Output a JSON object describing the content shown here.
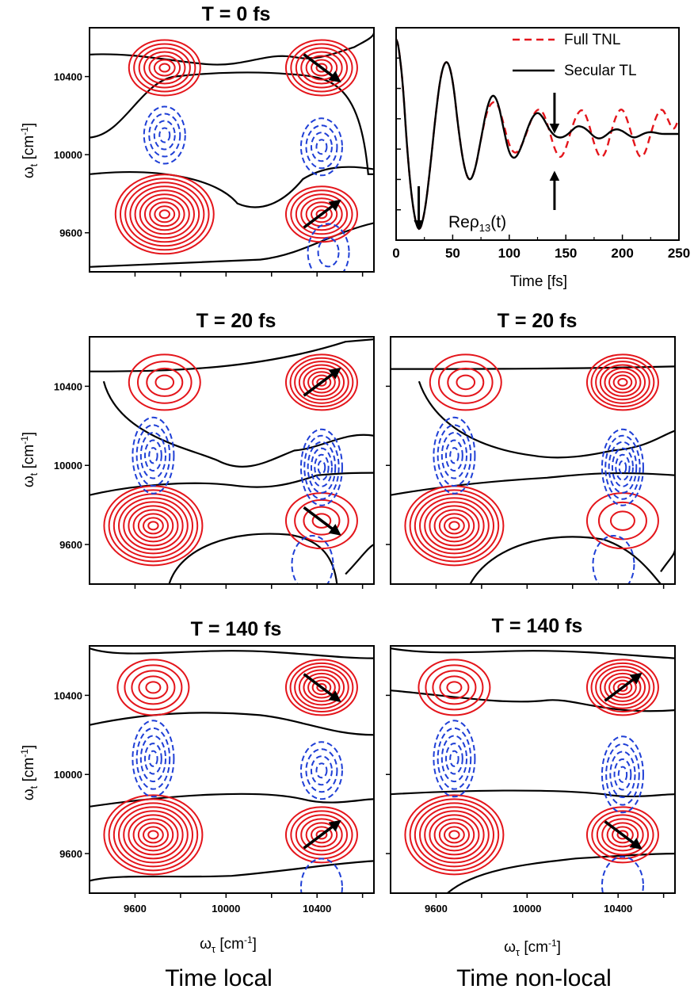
{
  "captions": {
    "left": "Time local",
    "right": "Time non-local"
  },
  "axis_units": {
    "omega_tau_label": "ω",
    "omega_tau_sub": "τ",
    "omega_t_label": "ω",
    "omega_t_sub": "t",
    "unit": "[cm",
    "unit_sup": "-1",
    "unit_close": "]"
  },
  "colors": {
    "positive_contours": "#e4151b",
    "negative_contours": "#1f3fd6",
    "zero_contour": "#000000",
    "arrow": "#000000",
    "full_tnl": "#e4151b",
    "secular_tl": "#000000"
  },
  "chart_data": [
    {
      "type": "contour",
      "panel": "top-left",
      "title": "T = 0 fs",
      "xlabel": "ωτ [cm-1]",
      "ylabel": "ωt [cm-1]",
      "xlim": [
        9400,
        10650
      ],
      "ylim": [
        9400,
        10650
      ],
      "yticks": [
        "10400",
        "10000",
        "9600"
      ],
      "xticks_labeled": false,
      "peaks": [
        {
          "x": 9730,
          "y": 10445,
          "sign": "positive",
          "rings": 7
        },
        {
          "x": 10420,
          "y": 10445,
          "sign": "positive",
          "rings": 7
        },
        {
          "x": 9730,
          "y": 9695,
          "sign": "positive",
          "rings": 10
        },
        {
          "x": 10420,
          "y": 9695,
          "sign": "positive",
          "rings": 7
        },
        {
          "x": 9730,
          "y": 10100,
          "sign": "negative",
          "rings": 4
        },
        {
          "x": 10420,
          "y": 10040,
          "sign": "negative",
          "rings": 4
        },
        {
          "x": 10450,
          "y": 9500,
          "sign": "negative",
          "rings": 2
        }
      ],
      "arrows": [
        {
          "at": "upper-right",
          "direction": "down-right"
        },
        {
          "at": "lower-right",
          "direction": "up-right"
        }
      ]
    },
    {
      "type": "line",
      "panel": "top-right",
      "xlabel": "Time [fs]",
      "xlim": [
        0,
        250
      ],
      "xticks": [
        "0",
        "50",
        "100",
        "150",
        "200",
        "250"
      ],
      "annotation": "Reρ13(t)",
      "legend": {
        "position": "top-right",
        "entries": [
          "Full TNL",
          "Secular TL"
        ]
      },
      "series": [
        {
          "name": "Full TNL",
          "style": "dashed",
          "color": "#e4151b",
          "x": [
            0,
            2,
            6,
            10,
            15,
            20,
            25,
            30,
            35,
            40,
            45,
            50,
            55,
            60,
            65,
            70,
            75,
            80,
            85,
            90,
            95,
            100,
            105,
            110,
            115,
            120,
            125,
            130,
            135,
            140,
            145,
            150,
            155,
            160,
            165,
            170,
            175,
            180,
            185,
            190,
            195,
            200,
            205,
            210,
            215,
            220,
            225,
            230,
            235,
            240,
            245,
            250
          ],
          "y": [
            0.93,
            0.88,
            0.5,
            -0.2,
            -0.75,
            -0.98,
            -0.8,
            -0.35,
            0.2,
            0.62,
            0.74,
            0.55,
            0.05,
            -0.33,
            -0.48,
            -0.35,
            -0.05,
            0.22,
            0.32,
            0.3,
            0.1,
            -0.12,
            -0.2,
            -0.14,
            0.0,
            0.16,
            0.25,
            0.22,
            0.05,
            -0.15,
            -0.25,
            -0.15,
            0.05,
            0.2,
            0.25,
            0.12,
            -0.1,
            -0.24,
            -0.2,
            0.02,
            0.2,
            0.26,
            0.12,
            -0.08,
            -0.24,
            -0.2,
            0.0,
            0.18,
            0.26,
            0.15,
            0.02,
            0.15
          ]
        },
        {
          "name": "Secular TL",
          "style": "solid",
          "color": "#000000",
          "x": [
            0,
            2,
            6,
            10,
            15,
            20,
            25,
            30,
            35,
            40,
            45,
            50,
            55,
            60,
            65,
            70,
            75,
            80,
            85,
            90,
            95,
            100,
            105,
            110,
            115,
            120,
            125,
            130,
            135,
            140,
            145,
            150,
            155,
            160,
            165,
            170,
            175,
            180,
            185,
            190,
            195,
            200,
            205,
            210,
            215,
            220,
            225,
            230,
            235,
            240,
            245,
            250
          ],
          "y": [
            0.93,
            0.88,
            0.5,
            -0.2,
            -0.75,
            -0.98,
            -0.8,
            -0.35,
            0.2,
            0.62,
            0.74,
            0.55,
            0.05,
            -0.33,
            -0.48,
            -0.35,
            -0.05,
            0.25,
            0.4,
            0.32,
            0.05,
            -0.2,
            -0.25,
            -0.15,
            0.02,
            0.16,
            0.22,
            0.16,
            0.05,
            -0.02,
            -0.04,
            -0.02,
            0.03,
            0.08,
            0.07,
            0.03,
            -0.03,
            -0.05,
            -0.02,
            0.03,
            0.05,
            0.03,
            -0.01,
            -0.04,
            -0.02,
            0.01,
            0.02,
            0.01,
            0.0,
            0.0,
            0.0,
            0.0
          ]
        }
      ],
      "arrows": [
        {
          "at_x": 20,
          "direction": "down"
        },
        {
          "at_x": 140,
          "direction": "down"
        },
        {
          "at_x": 140,
          "direction": "up"
        }
      ]
    },
    {
      "type": "contour",
      "panel": "middle-left",
      "title": "T = 20 fs",
      "xlim": [
        9400,
        10650
      ],
      "ylim": [
        9400,
        10650
      ],
      "yticks": [
        "10400",
        "10000",
        "9600"
      ],
      "peaks": [
        {
          "x": 9730,
          "y": 10420,
          "sign": "positive",
          "rings": 4
        },
        {
          "x": 10420,
          "y": 10420,
          "sign": "positive",
          "rings": 8
        },
        {
          "x": 9680,
          "y": 9695,
          "sign": "positive",
          "rings": 10
        },
        {
          "x": 10420,
          "y": 9720,
          "sign": "positive",
          "rings": 4
        },
        {
          "x": 9680,
          "y": 10050,
          "sign": "negative",
          "rings": 5
        },
        {
          "x": 10420,
          "y": 9990,
          "sign": "negative",
          "rings": 6
        },
        {
          "x": 10380,
          "y": 9500,
          "sign": "negative",
          "rings": 1
        }
      ],
      "arrows": [
        {
          "at": "upper-right",
          "direction": "up-right"
        },
        {
          "at": "lower-right",
          "direction": "down-right"
        }
      ]
    },
    {
      "type": "contour",
      "panel": "middle-right",
      "title": "T = 20 fs",
      "xlim": [
        9400,
        10650
      ],
      "ylim": [
        9400,
        10650
      ],
      "peaks": [
        {
          "x": 9730,
          "y": 10420,
          "sign": "positive",
          "rings": 4
        },
        {
          "x": 10420,
          "y": 10420,
          "sign": "positive",
          "rings": 8
        },
        {
          "x": 9680,
          "y": 9695,
          "sign": "positive",
          "rings": 10
        },
        {
          "x": 10420,
          "y": 9720,
          "sign": "positive",
          "rings": 3
        },
        {
          "x": 9680,
          "y": 10050,
          "sign": "negative",
          "rings": 5
        },
        {
          "x": 10420,
          "y": 9990,
          "sign": "negative",
          "rings": 6
        },
        {
          "x": 10380,
          "y": 9500,
          "sign": "negative",
          "rings": 1
        }
      ],
      "arrows": []
    },
    {
      "type": "contour",
      "panel": "bottom-left",
      "title": "T = 140 fs",
      "xlabel": "ωτ [cm-1]",
      "xlim": [
        9400,
        10650
      ],
      "ylim": [
        9400,
        10650
      ],
      "xticks": [
        "9600",
        "10000",
        "10400"
      ],
      "yticks": [
        "10400",
        "10000",
        "9600"
      ],
      "peaks": [
        {
          "x": 9680,
          "y": 10440,
          "sign": "positive",
          "rings": 5
        },
        {
          "x": 10420,
          "y": 10440,
          "sign": "positive",
          "rings": 8
        },
        {
          "x": 9680,
          "y": 9695,
          "sign": "positive",
          "rings": 10
        },
        {
          "x": 10420,
          "y": 9695,
          "sign": "positive",
          "rings": 7
        },
        {
          "x": 9680,
          "y": 10080,
          "sign": "negative",
          "rings": 5
        },
        {
          "x": 10420,
          "y": 10020,
          "sign": "negative",
          "rings": 4
        },
        {
          "x": 10420,
          "y": 9430,
          "sign": "negative",
          "rings": 1
        }
      ],
      "arrows": [
        {
          "at": "upper-right",
          "direction": "down-right"
        },
        {
          "at": "lower-right",
          "direction": "up-right"
        }
      ]
    },
    {
      "type": "contour",
      "panel": "bottom-right",
      "title": "T = 140 fs",
      "xlabel": "ωτ [cm-1]",
      "xlim": [
        9400,
        10650
      ],
      "ylim": [
        9400,
        10650
      ],
      "xticks": [
        "9600",
        "10000",
        "10400"
      ],
      "peaks": [
        {
          "x": 9680,
          "y": 10440,
          "sign": "positive",
          "rings": 5
        },
        {
          "x": 10420,
          "y": 10440,
          "sign": "positive",
          "rings": 8
        },
        {
          "x": 9680,
          "y": 9695,
          "sign": "positive",
          "rings": 10
        },
        {
          "x": 10420,
          "y": 9695,
          "sign": "positive",
          "rings": 7
        },
        {
          "x": 9680,
          "y": 10080,
          "sign": "negative",
          "rings": 5
        },
        {
          "x": 10420,
          "y": 10000,
          "sign": "negative",
          "rings": 5
        },
        {
          "x": 10420,
          "y": 9440,
          "sign": "negative",
          "rings": 1
        }
      ],
      "arrows": [
        {
          "at": "upper-right",
          "direction": "up-right"
        },
        {
          "at": "lower-right",
          "direction": "down-right"
        }
      ]
    }
  ]
}
